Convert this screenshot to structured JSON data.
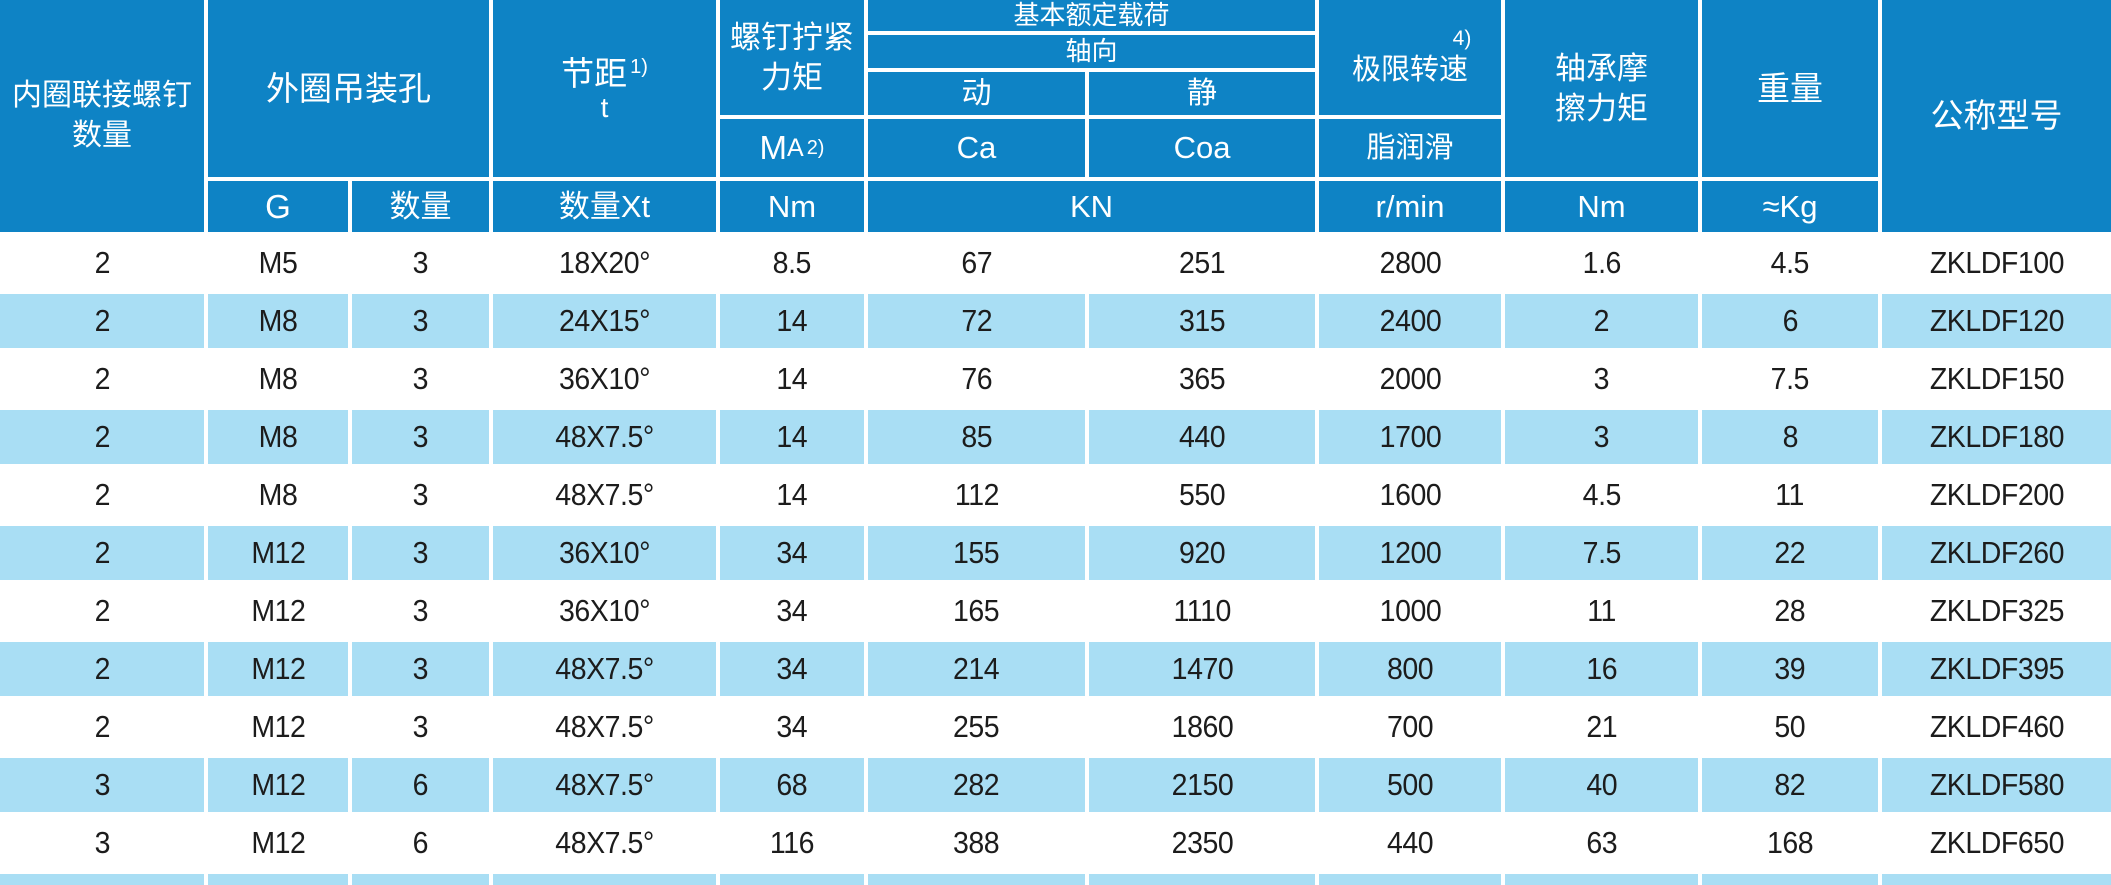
{
  "colors": {
    "header_blue": "#0E83C5",
    "row_light_blue": "#A9DEF4",
    "row_white": "#FFFFFF",
    "header_text": "#FFFFFF",
    "data_text": "#1C1C1C"
  },
  "table": {
    "header": {
      "inner_screws_line1": "内圈联接螺钉",
      "inner_screws_line2": "数量",
      "outer_holes": "外圈吊装孔",
      "outer_g": "G",
      "outer_qty": "数量",
      "pitch": "节距",
      "pitch_sup": "1)",
      "pitch_sym": "t",
      "pitch_unit": "数量Xt",
      "torque_line1": "螺钉拧紧",
      "torque_line2": "力矩",
      "torque_m": "M",
      "torque_a": "A",
      "torque_sup": "2)",
      "torque_unit": "Nm",
      "load": "基本额定载荷",
      "axial": "轴向",
      "dynamic": "动",
      "static": "静",
      "ca": "Ca",
      "coa": "Coa",
      "load_unit": "KN",
      "speed": "极限转速",
      "speed_sup": "4)",
      "grease": "脂润滑",
      "speed_unit": "r/min",
      "friction_line1": "轴承摩",
      "friction_line2": "擦力矩",
      "friction_unit": "Nm",
      "weight": "重量",
      "weight_unit": "≈Kg",
      "model": "公称型号"
    },
    "rows": [
      [
        "2",
        "M5",
        "3",
        "18X20°",
        "8.5",
        "67",
        "251",
        "2800",
        "1.6",
        "4.5",
        "ZKLDF100"
      ],
      [
        "2",
        "M8",
        "3",
        "24X15°",
        "14",
        "72",
        "315",
        "2400",
        "2",
        "6",
        "ZKLDF120"
      ],
      [
        "2",
        "M8",
        "3",
        "36X10°",
        "14",
        "76",
        "365",
        "2000",
        "3",
        "7.5",
        "ZKLDF150"
      ],
      [
        "2",
        "M8",
        "3",
        "48X7.5°",
        "14",
        "85",
        "440",
        "1700",
        "3",
        "8",
        "ZKLDF180"
      ],
      [
        "2",
        "M8",
        "3",
        "48X7.5°",
        "14",
        "112",
        "550",
        "1600",
        "4.5",
        "11",
        "ZKLDF200"
      ],
      [
        "2",
        "M12",
        "3",
        "36X10°",
        "34",
        "155",
        "920",
        "1200",
        "7.5",
        "22",
        "ZKLDF260"
      ],
      [
        "2",
        "M12",
        "3",
        "36X10°",
        "34",
        "165",
        "1110",
        "1000",
        "11",
        "28",
        "ZKLDF325"
      ],
      [
        "2",
        "M12",
        "3",
        "48X7.5°",
        "34",
        "214",
        "1470",
        "800",
        "16",
        "39",
        "ZKLDF395"
      ],
      [
        "2",
        "M12",
        "3",
        "48X7.5°",
        "34",
        "255",
        "1860",
        "700",
        "21",
        "50",
        "ZKLDF460"
      ],
      [
        "3",
        "M12",
        "6",
        "48X7.5°",
        "68",
        "282",
        "2150",
        "500",
        "40",
        "82",
        "ZKLDF580"
      ],
      [
        "3",
        "M12",
        "6",
        "48X7.5°",
        "116",
        "388",
        "2350",
        "440",
        "63",
        "168",
        "ZKLDF650"
      ]
    ]
  }
}
